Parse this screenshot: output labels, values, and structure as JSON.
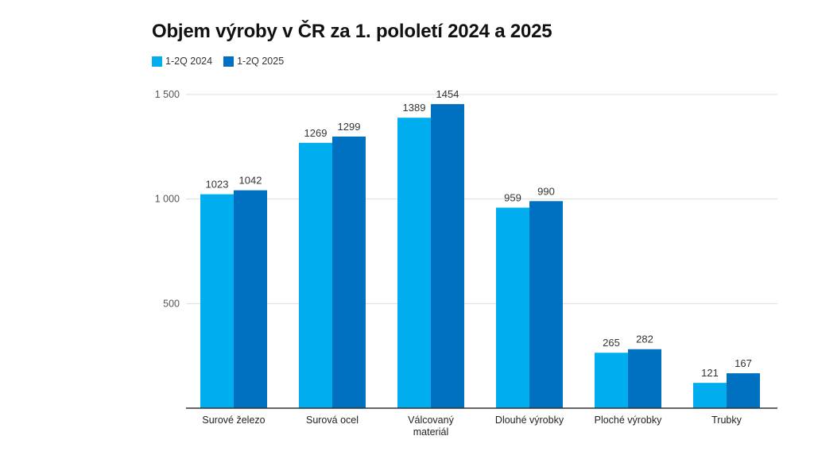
{
  "title": "Objem výroby v ČR za 1. pololetí 2024 a 2025",
  "chart_data": {
    "type": "bar",
    "title": "Objem výroby v ČR za 1. pololetí 2024 a 2025",
    "categories": [
      [
        "Surové železo"
      ],
      [
        "Surová ocel"
      ],
      [
        "Válcovaný",
        "materiál"
      ],
      [
        "Dlouhé výrobky"
      ],
      [
        "Ploché výrobky"
      ],
      [
        "Trubky"
      ]
    ],
    "series": [
      {
        "name": "1-2Q 2024",
        "color": "#00aeef",
        "values": [
          1023,
          1269,
          1389,
          959,
          265,
          121
        ]
      },
      {
        "name": "1-2Q 2025",
        "color": "#0071c1",
        "values": [
          1042,
          1299,
          1454,
          990,
          282,
          167
        ]
      }
    ],
    "yticks": [
      {
        "value": 500,
        "label": "500"
      },
      {
        "value": 1000,
        "label": "1 000"
      },
      {
        "value": 1500,
        "label": "1 500"
      }
    ],
    "ylim": [
      0,
      1500
    ],
    "xlabel": "",
    "ylabel": "",
    "grid": true,
    "legend": "top-left",
    "gridColor": "#dddddd",
    "axisColor": "#333333"
  }
}
